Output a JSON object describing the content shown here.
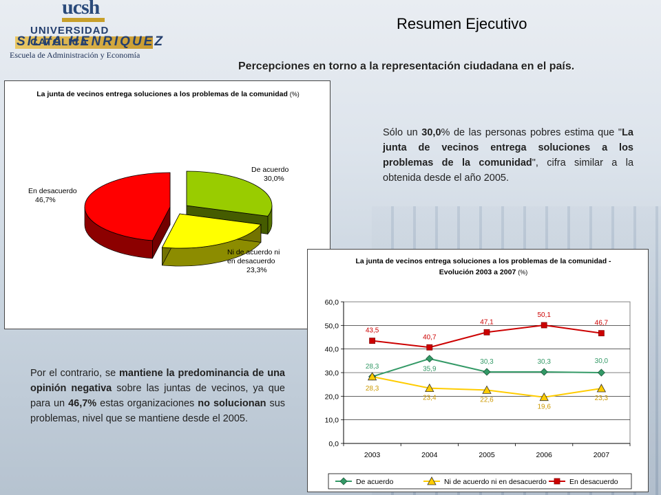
{
  "header": {
    "logo_text": "ucsh",
    "logo_university": "UNIVERSIDAD CATOLICA",
    "logo_name": "SILVA HENRIQUEZ",
    "logo_school": "Escuela de Administración y Economía",
    "title": "Resumen Ejecutivo",
    "subtitle": "Percepciones en torno a la representación ciudadana en el país."
  },
  "paragraph1": {
    "p1": "Sólo un ",
    "b1": "30,0",
    "p2": "% de las personas pobres estima que \"",
    "b2": "La junta de vecinos entrega soluciones a los problemas de la comunidad",
    "p3": "\", cifra similar a la obtenida desde el año 2005."
  },
  "paragraph2": {
    "p1": "Por el contrario, se ",
    "b1": "mantiene la predominancia de una opinión negativa",
    "p2": " sobre las juntas de vecinos, ya que para un ",
    "b2": "46,7%",
    "p3": " estas organizaciones ",
    "b3": "no solucionan",
    "p4": " sus problemas, nivel que se mantiene desde el 2005."
  },
  "chart_data": [
    {
      "type": "pie",
      "title": "La junta de vecinos entrega soluciones a los problemas de la comunidad",
      "title_unit": "(%)",
      "slices": [
        {
          "label": "De acuerdo",
          "value": 30.0,
          "value_label": "30,0%",
          "color": "#99cc00"
        },
        {
          "label": "Ni de acuerdo ni en desacuerdo",
          "value": 23.3,
          "value_label": "23,3%",
          "color": "#ffff00"
        },
        {
          "label": "En desacuerdo",
          "value": 46.7,
          "value_label": "46,7%",
          "color": "#ff0000"
        }
      ]
    },
    {
      "type": "line",
      "title": "La junta de vecinos entrega soluciones a los problemas de la comunidad - Evolución 2003 a 2007",
      "title_line1": "La junta de vecinos entrega soluciones a los problemas de la comunidad -",
      "title_line2": "Evolución 2003 a 2007",
      "title_unit": "(%)",
      "categories": [
        "2003",
        "2004",
        "2005",
        "2006",
        "2007"
      ],
      "ylim": [
        0,
        60
      ],
      "yticks": [
        "0,0",
        "10,0",
        "20,0",
        "30,0",
        "40,0",
        "50,0",
        "60,0"
      ],
      "grid": true,
      "legend_position": "bottom",
      "series": [
        {
          "name": "De acuerdo",
          "values": [
            28.3,
            35.9,
            30.3,
            30.3,
            30.0
          ],
          "labels": [
            "28,3",
            "35,9",
            "30,3",
            "30,3",
            "30,0"
          ],
          "color": "#339966",
          "marker": "diamond"
        },
        {
          "name": "Ni de acuerdo ni en desacuerdo",
          "values": [
            28.3,
            23.4,
            22.6,
            19.6,
            23.3
          ],
          "labels": [
            "28,3",
            "23,4",
            "22,6",
            "19,6",
            "23,3"
          ],
          "color": "#ffcc00",
          "marker": "triangle"
        },
        {
          "name": "En desacuerdo",
          "values": [
            43.5,
            40.7,
            47.1,
            50.1,
            46.7
          ],
          "labels": [
            "43,5",
            "40,7",
            "47,1",
            "50,1",
            "46,7"
          ],
          "color": "#cc0000",
          "marker": "square"
        }
      ]
    }
  ]
}
